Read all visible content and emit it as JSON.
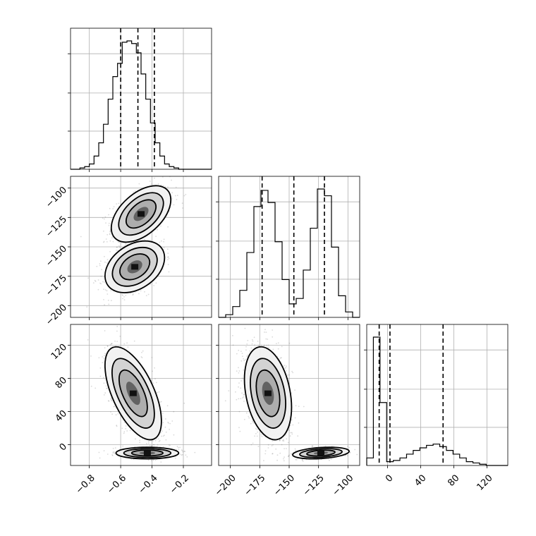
{
  "chart_data": {
    "type": "corner",
    "grid": true,
    "params": [
      {
        "range": [
          -0.92,
          -0.02
        ],
        "ticks": [
          -0.8,
          -0.6,
          -0.4,
          -0.2
        ],
        "tick_labels": [
          "−0.8",
          "−0.6",
          "−0.4",
          "−0.2"
        ],
        "quantiles": [
          -0.6,
          -0.49,
          -0.385
        ],
        "hist_bins": [
          -0.92,
          -0.89,
          -0.86,
          -0.83,
          -0.8,
          -0.77,
          -0.74,
          -0.71,
          -0.68,
          -0.65,
          -0.62,
          -0.59,
          -0.56,
          -0.53,
          -0.5,
          -0.47,
          -0.44,
          -0.41,
          -0.38,
          -0.35,
          -0.32,
          -0.29,
          -0.26,
          -0.23,
          -0.2,
          -0.17,
          -0.14,
          -0.11,
          -0.08,
          -0.05,
          -0.02
        ],
        "hist_counts": [
          0,
          0,
          1,
          2,
          4,
          10,
          20,
          34,
          53,
          70,
          80,
          96,
          97,
          95,
          88,
          72,
          53,
          35,
          20,
          10,
          4,
          2,
          1,
          0,
          0,
          0,
          0,
          0,
          0,
          0
        ]
      },
      {
        "range": [
          -210,
          -90
        ],
        "ticks": [
          -200,
          -175,
          -150,
          -125,
          -100
        ],
        "tick_labels": [
          "−200",
          "−175",
          "−150",
          "−125",
          "−100"
        ],
        "quantiles": [
          -173,
          -146,
          -120
        ],
        "hist_bins": [
          -210,
          -204,
          -198,
          -192,
          -186,
          -180,
          -174,
          -168,
          -162,
          -156,
          -150,
          -144,
          -138,
          -132,
          -126,
          -120,
          -114,
          -108,
          -102,
          -96,
          -90
        ],
        "hist_counts": [
          0,
          2,
          8,
          20,
          48,
          82,
          94,
          85,
          56,
          28,
          10,
          14,
          35,
          66,
          95,
          90,
          52,
          16,
          4,
          0
        ]
      },
      {
        "range": [
          -25,
          145
        ],
        "ticks": [
          0,
          40,
          80,
          120
        ],
        "tick_labels": [
          "0",
          "40",
          "80",
          "120"
        ],
        "quantiles": [
          -10,
          3,
          67
        ],
        "hist_bins": [
          -25,
          -17,
          -9,
          -1,
          7,
          15,
          23,
          31,
          39,
          47,
          55,
          63,
          71,
          79,
          87,
          95,
          103,
          111,
          119,
          127,
          135,
          145
        ],
        "hist_counts": [
          6,
          102,
          50,
          3,
          4,
          6,
          9,
          12,
          14,
          16,
          17,
          15,
          12,
          9,
          6,
          3,
          2,
          1,
          0,
          0,
          0
        ]
      }
    ],
    "pairs": [
      {
        "x_param": 0,
        "y_param": 1,
        "modes": [
          {
            "center": [
              -0.47,
              -122
            ],
            "sx": 0.095,
            "sy": 12,
            "rho": 0.5,
            "weight": 0.5
          },
          {
            "center": [
              -0.51,
              -167
            ],
            "sx": 0.095,
            "sy": 11,
            "rho": 0.35,
            "weight": 0.5
          }
        ]
      },
      {
        "x_param": 0,
        "y_param": 2,
        "modes": [
          {
            "center": [
              -0.52,
              62
            ],
            "sx": 0.09,
            "sy": 28,
            "rho": -0.6,
            "weight": 0.7
          },
          {
            "center": [
              -0.43,
              -10
            ],
            "sx": 0.1,
            "sy": 3.5,
            "rho": 0.0,
            "weight": 0.3
          }
        ]
      },
      {
        "x_param": 1,
        "y_param": 2,
        "modes": [
          {
            "center": [
              -168,
              62
            ],
            "sx": 10,
            "sy": 28,
            "rho": -0.3,
            "weight": 0.7
          },
          {
            "center": [
              -123,
              -10
            ],
            "sx": 12,
            "sy": 3.5,
            "rho": 0.3,
            "weight": 0.3
          }
        ]
      }
    ]
  }
}
